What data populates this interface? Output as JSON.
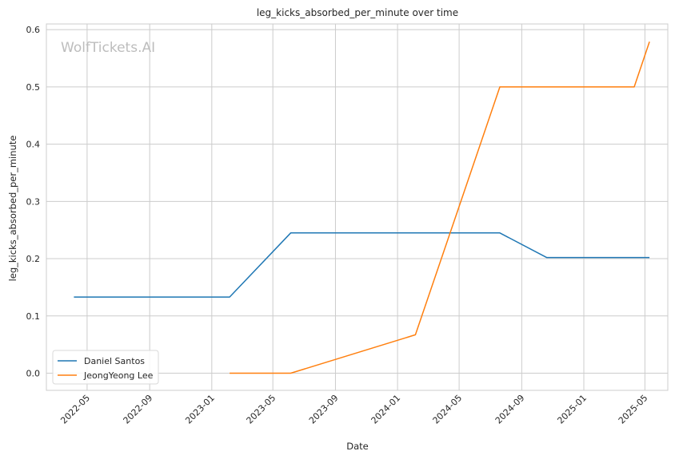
{
  "watermark": "WolfTickets.AI",
  "chart_data": {
    "type": "line",
    "title": "leg_kicks_absorbed_per_minute over time",
    "xlabel": "Date",
    "ylabel": "leg_kicks_absorbed_per_minute",
    "xlim": [
      "2022-02-10",
      "2025-06-15"
    ],
    "ylim": [
      -0.03,
      0.61
    ],
    "x_ticks": [
      "2022-05",
      "2022-09",
      "2023-01",
      "2023-05",
      "2023-09",
      "2024-01",
      "2024-05",
      "2024-09",
      "2025-01",
      "2025-05"
    ],
    "y_ticks": [
      0.0,
      0.1,
      0.2,
      0.3,
      0.4,
      0.5,
      0.6
    ],
    "y_tick_labels": [
      "0.0",
      "0.1",
      "0.2",
      "0.3",
      "0.4",
      "0.5",
      "0.6"
    ],
    "grid": true,
    "legend_position": "lower-left",
    "series": [
      {
        "name": "Daniel Santos",
        "color": "#1f77b4",
        "points": [
          {
            "x": "2022-04-05",
            "y": 0.133
          },
          {
            "x": "2023-02-05",
            "y": 0.133
          },
          {
            "x": "2023-06-05",
            "y": 0.245
          },
          {
            "x": "2024-07-20",
            "y": 0.245
          },
          {
            "x": "2024-10-20",
            "y": 0.202
          },
          {
            "x": "2025-05-10",
            "y": 0.202
          }
        ]
      },
      {
        "name": "JeongYeong Lee",
        "color": "#ff7f0e",
        "points": [
          {
            "x": "2023-02-05",
            "y": 0.0
          },
          {
            "x": "2023-06-05",
            "y": 0.0
          },
          {
            "x": "2024-02-05",
            "y": 0.067
          },
          {
            "x": "2024-07-20",
            "y": 0.5
          },
          {
            "x": "2025-04-10",
            "y": 0.5
          },
          {
            "x": "2025-05-10",
            "y": 0.579
          }
        ]
      }
    ]
  }
}
